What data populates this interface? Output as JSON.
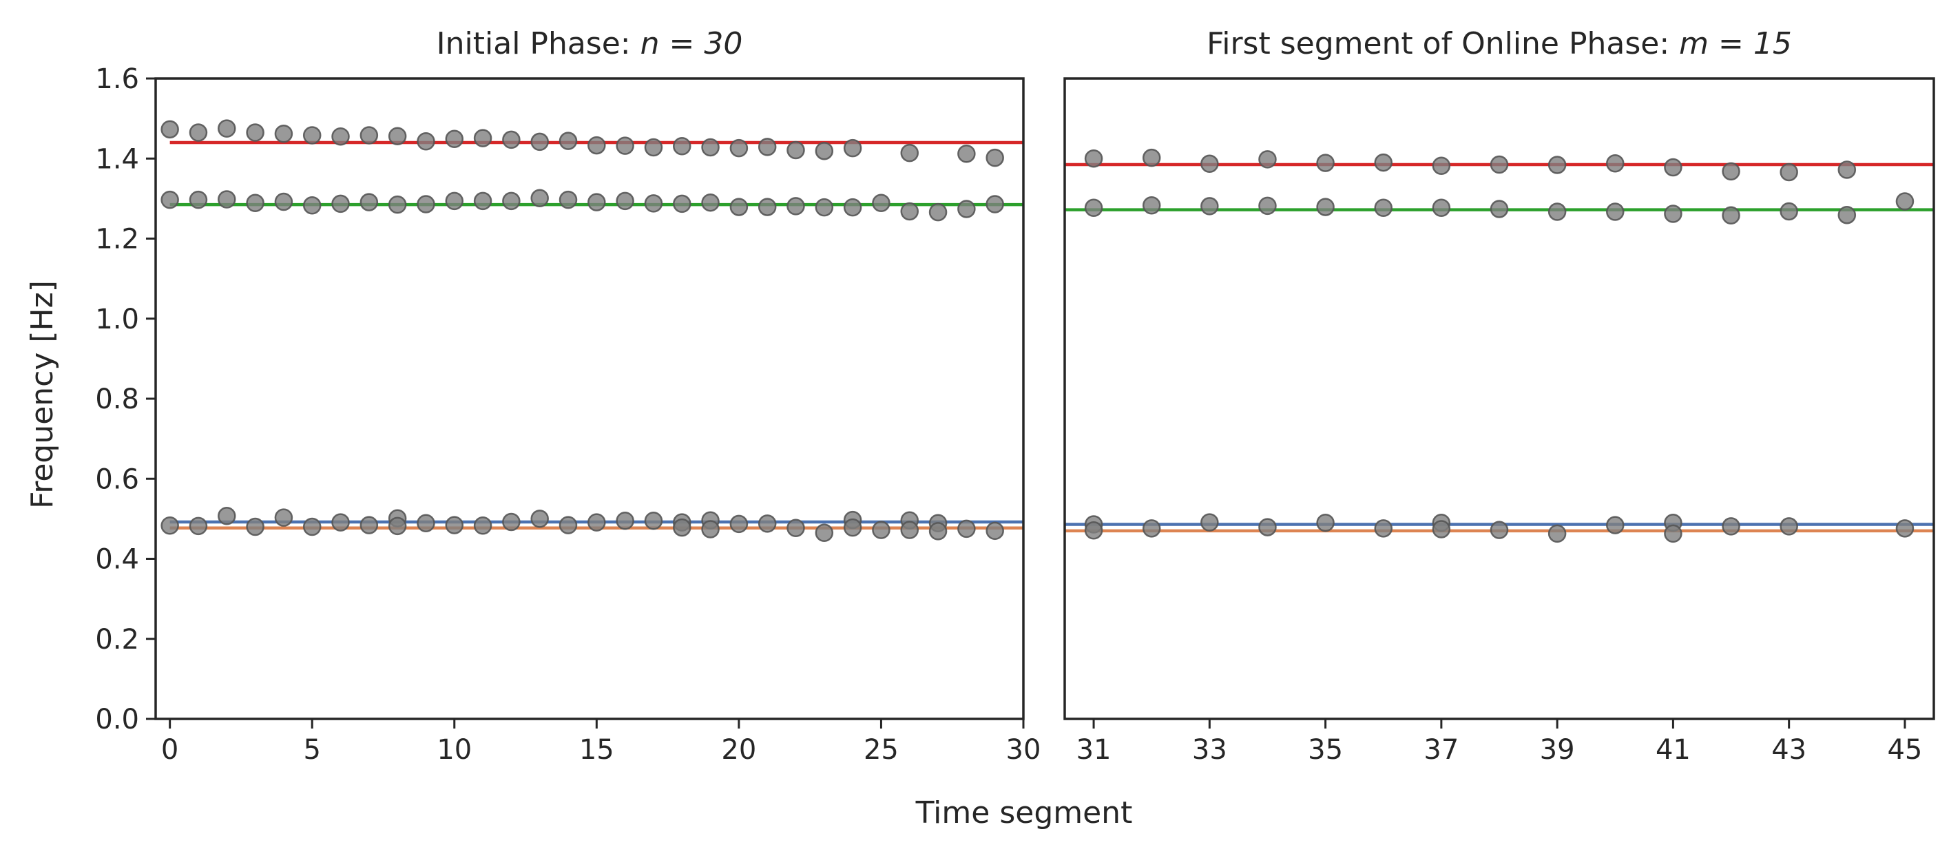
{
  "figure": {
    "xlabel": "Time segment",
    "ylabel": "Frequency [Hz]"
  },
  "chart_data": [
    {
      "type": "scatter",
      "title": "Initial Phase: n = 30",
      "title_prefix": "Initial Phase: ",
      "title_math": "n = 30",
      "xlim": [
        -0.5,
        30
      ],
      "ylim": [
        0.0,
        1.6
      ],
      "xticks": [
        0,
        5,
        10,
        15,
        20,
        25,
        30
      ],
      "yticks": [
        0.0,
        0.2,
        0.4,
        0.6,
        0.8,
        1.0,
        1.2,
        1.4,
        1.6
      ],
      "ytick_labels": [
        "0.0",
        "0.2",
        "0.4",
        "0.6",
        "0.8",
        "1.0",
        "1.2",
        "1.4",
        "1.6"
      ],
      "grid": false,
      "legend": "none",
      "marker_color": "#808080",
      "reference_lines": [
        {
          "y": 1.44,
          "color": "#d62728"
        },
        {
          "y": 1.285,
          "color": "#2ca02c"
        },
        {
          "y": 0.492,
          "color": "#4c72b0"
        },
        {
          "y": 0.477,
          "color": "#dd8452"
        }
      ],
      "series": [
        {
          "x": [
            0,
            1,
            2,
            3,
            4,
            5,
            6,
            7,
            8,
            9,
            10,
            11,
            12,
            13,
            14,
            15,
            16,
            17,
            18,
            19,
            20,
            21,
            22,
            23,
            24,
            26,
            28,
            29
          ],
          "y": [
            1.473,
            1.465,
            1.475,
            1.465,
            1.462,
            1.458,
            1.455,
            1.458,
            1.456,
            1.443,
            1.449,
            1.451,
            1.447,
            1.442,
            1.444,
            1.433,
            1.432,
            1.428,
            1.431,
            1.428,
            1.426,
            1.429,
            1.421,
            1.419,
            1.426,
            1.414,
            1.412,
            1.402
          ]
        },
        {
          "x": [
            0,
            1,
            2,
            3,
            4,
            5,
            6,
            7,
            8,
            9,
            10,
            11,
            12,
            13,
            14,
            15,
            16,
            17,
            18,
            19,
            20,
            21,
            22,
            23,
            24,
            25,
            26,
            27,
            28,
            29
          ],
          "y": [
            1.297,
            1.297,
            1.298,
            1.289,
            1.292,
            1.283,
            1.287,
            1.291,
            1.285,
            1.286,
            1.294,
            1.294,
            1.294,
            1.301,
            1.297,
            1.291,
            1.294,
            1.288,
            1.287,
            1.29,
            1.279,
            1.279,
            1.281,
            1.278,
            1.278,
            1.289,
            1.268,
            1.266,
            1.274,
            1.286
          ]
        },
        {
          "x": [
            0,
            1,
            2,
            3,
            4,
            5,
            6,
            7,
            8,
            9,
            10,
            11,
            12,
            13,
            14,
            15,
            16,
            17,
            18,
            19,
            20,
            21,
            22,
            23,
            24,
            25,
            26,
            27,
            28,
            29
          ],
          "y": [
            0.483,
            0.482,
            0.507,
            0.48,
            0.503,
            0.48,
            0.491,
            0.484,
            0.501,
            0.489,
            0.484,
            0.483,
            0.492,
            0.5,
            0.484,
            0.491,
            0.495,
            0.495,
            0.491,
            0.496,
            0.487,
            0.488,
            0.477,
            0.465,
            0.497,
            0.472,
            0.496,
            0.489,
            0.475,
            0.47
          ]
        },
        {
          "x": [
            8,
            18,
            19,
            24,
            26,
            27
          ],
          "y": [
            0.482,
            0.478,
            0.474,
            0.478,
            0.472,
            0.469
          ]
        }
      ]
    },
    {
      "type": "scatter",
      "title": "First segment of Online Phase: m = 15",
      "title_prefix": "First segment of Online Phase: ",
      "title_math": "m = 15",
      "xlim": [
        30.5,
        45.5
      ],
      "ylim": [
        0.0,
        1.6
      ],
      "xticks": [
        31,
        33,
        35,
        37,
        39,
        41,
        43,
        45
      ],
      "yticks": [],
      "grid": false,
      "legend": "none",
      "marker_color": "#808080",
      "reference_lines": [
        {
          "y": 1.385,
          "color": "#d62728"
        },
        {
          "y": 1.272,
          "color": "#2ca02c"
        },
        {
          "y": 0.486,
          "color": "#4c72b0"
        },
        {
          "y": 0.47,
          "color": "#dd8452"
        }
      ],
      "series": [
        {
          "x": [
            31,
            32,
            33,
            34,
            35,
            36,
            37,
            38,
            39,
            40,
            41,
            42,
            43,
            44
          ],
          "y": [
            1.4,
            1.402,
            1.387,
            1.398,
            1.389,
            1.39,
            1.382,
            1.385,
            1.384,
            1.388,
            1.378,
            1.368,
            1.366,
            1.372
          ]
        },
        {
          "x": [
            31,
            32,
            33,
            34,
            35,
            36,
            37,
            38,
            39,
            40,
            41,
            42,
            43,
            44,
            45
          ],
          "y": [
            1.277,
            1.283,
            1.281,
            1.282,
            1.279,
            1.277,
            1.277,
            1.274,
            1.267,
            1.267,
            1.262,
            1.258,
            1.268,
            1.259,
            1.293
          ]
        },
        {
          "x": [
            31,
            32,
            33,
            34,
            35,
            36,
            37,
            38,
            39,
            40,
            41,
            42,
            43,
            45
          ],
          "y": [
            0.486,
            0.476,
            0.491,
            0.479,
            0.49,
            0.476,
            0.49,
            0.472,
            0.463,
            0.484,
            0.49,
            0.481,
            0.481,
            0.476
          ]
        },
        {
          "x": [
            31,
            37,
            41
          ],
          "y": [
            0.471,
            0.474,
            0.463
          ]
        }
      ]
    }
  ]
}
